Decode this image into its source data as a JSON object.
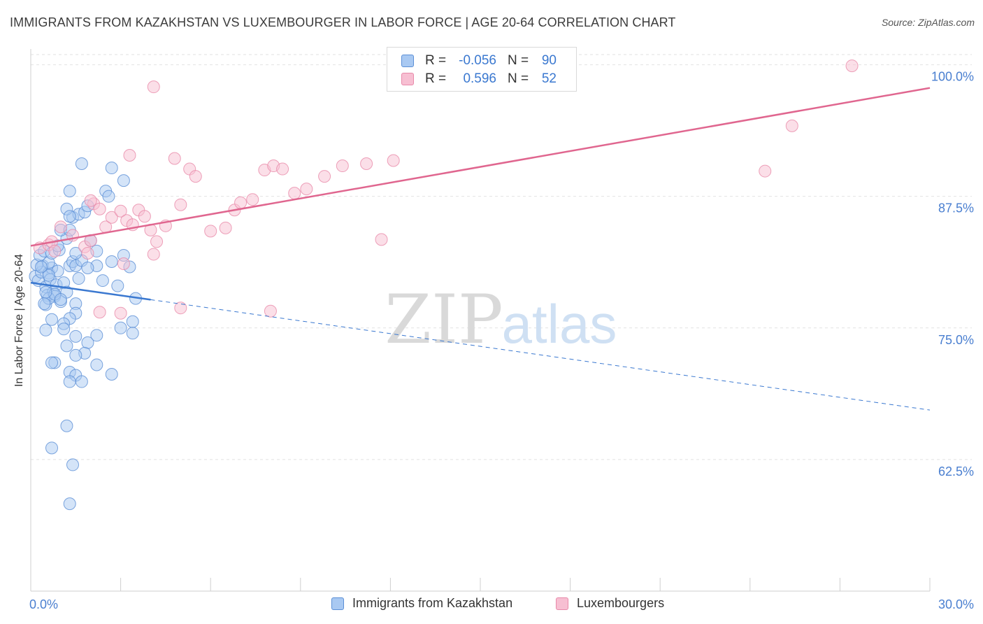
{
  "title": "IMMIGRANTS FROM KAZAKHSTAN VS LUXEMBOURGER IN LABOR FORCE | AGE 20-64 CORRELATION CHART",
  "source": "Source: ZipAtlas.com",
  "watermark": {
    "zip": "ZIP",
    "atlas": "atlas"
  },
  "legend": {
    "rows": [
      {
        "r_label": "R =",
        "r_value": "-0.056",
        "n_label": "N =",
        "n_value": "90"
      },
      {
        "r_label": "R =",
        "r_value": "0.596",
        "n_label": "N =",
        "n_value": "52"
      }
    ]
  },
  "bottom_legend": [
    "Immigrants from Kazakhstan",
    "Luxembourgers"
  ],
  "colors": {
    "blue_fill": "#a9c9f2",
    "blue_stroke": "#5b8fd6",
    "blue_line": "#3a78d0",
    "pink_fill": "#f7bfd2",
    "pink_stroke": "#e889a9",
    "pink_line": "#e0668f",
    "axis_text": "#4a7fd0",
    "grid": "#e2e2e2"
  },
  "chart_data": {
    "type": "scatter",
    "title": "IMMIGRANTS FROM KAZAKHSTAN VS LUXEMBOURGER IN LABOR FORCE | AGE 20-64 CORRELATION CHART",
    "xlabel": "",
    "ylabel": "In Labor Force | Age 20-64",
    "xlim": [
      0,
      30
    ],
    "ylim": [
      50,
      101.5
    ],
    "x_tick_labels": [
      "0.0%",
      "30.0%"
    ],
    "y_ticks": [
      62.5,
      75.0,
      87.5,
      100.0
    ],
    "y_tick_labels": [
      "62.5%",
      "75.0%",
      "87.5%",
      "100.0%"
    ],
    "series": [
      {
        "name": "Immigrants from Kazakhstan",
        "trend": {
          "x0": 0,
          "y0": 79.3,
          "x1": 30,
          "y1": 67.2,
          "solid_until": 4
        },
        "points": [
          [
            0.15,
            79.9
          ],
          [
            0.25,
            79.5
          ],
          [
            0.35,
            80.3
          ],
          [
            0.4,
            80.9
          ],
          [
            0.5,
            78.9
          ],
          [
            0.55,
            78.1
          ],
          [
            0.6,
            80.2
          ],
          [
            0.65,
            79.6
          ],
          [
            0.7,
            80.7
          ],
          [
            0.75,
            78.4
          ],
          [
            0.8,
            78.0
          ],
          [
            0.85,
            79.1
          ],
          [
            0.9,
            80.4
          ],
          [
            1.0,
            77.5
          ],
          [
            1.1,
            79.3
          ],
          [
            1.2,
            78.4
          ],
          [
            1.3,
            80.9
          ],
          [
            1.4,
            81.3
          ],
          [
            1.5,
            80.9
          ],
          [
            1.7,
            81.4
          ],
          [
            0.2,
            81.0
          ],
          [
            0.3,
            81.9
          ],
          [
            0.45,
            82.3
          ],
          [
            0.6,
            81.2
          ],
          [
            0.7,
            82.1
          ],
          [
            0.95,
            82.4
          ],
          [
            1.2,
            83.5
          ],
          [
            1.0,
            84.3
          ],
          [
            1.4,
            85.5
          ],
          [
            1.6,
            85.8
          ],
          [
            1.8,
            86.0
          ],
          [
            1.2,
            86.3
          ],
          [
            1.3,
            88.0
          ],
          [
            1.9,
            86.6
          ],
          [
            2.5,
            88.0
          ],
          [
            1.3,
            85.6
          ],
          [
            2.0,
            83.3
          ],
          [
            2.2,
            82.3
          ],
          [
            2.7,
            81.3
          ],
          [
            3.1,
            81.9
          ],
          [
            3.3,
            80.8
          ],
          [
            2.2,
            80.9
          ],
          [
            1.6,
            79.7
          ],
          [
            0.5,
            77.2
          ],
          [
            0.6,
            77.8
          ],
          [
            0.8,
            78.2
          ],
          [
            1.0,
            77.7
          ],
          [
            1.5,
            77.3
          ],
          [
            1.5,
            76.4
          ],
          [
            1.3,
            75.9
          ],
          [
            0.7,
            75.8
          ],
          [
            1.1,
            75.4
          ],
          [
            1.1,
            74.9
          ],
          [
            3.0,
            75.0
          ],
          [
            2.2,
            74.3
          ],
          [
            1.5,
            74.2
          ],
          [
            0.5,
            74.8
          ],
          [
            3.4,
            75.6
          ],
          [
            1.9,
            73.6
          ],
          [
            1.2,
            73.3
          ],
          [
            1.8,
            72.6
          ],
          [
            1.5,
            72.4
          ],
          [
            0.8,
            71.7
          ],
          [
            1.3,
            70.8
          ],
          [
            1.5,
            70.5
          ],
          [
            0.7,
            71.7
          ],
          [
            2.2,
            71.5
          ],
          [
            1.3,
            69.9
          ],
          [
            1.7,
            69.9
          ],
          [
            2.7,
            70.6
          ],
          [
            3.4,
            74.5
          ],
          [
            2.4,
            79.5
          ],
          [
            2.9,
            79.0
          ],
          [
            3.5,
            77.8
          ],
          [
            1.9,
            80.7
          ],
          [
            0.9,
            82.8
          ],
          [
            1.5,
            82.1
          ],
          [
            0.6,
            80.0
          ],
          [
            0.5,
            78.4
          ],
          [
            0.45,
            77.3
          ],
          [
            0.35,
            80.8
          ],
          [
            3.1,
            89.0
          ],
          [
            2.6,
            87.5
          ],
          [
            1.3,
            84.3
          ],
          [
            1.2,
            65.7
          ],
          [
            0.7,
            63.6
          ],
          [
            1.4,
            62.0
          ],
          [
            1.3,
            58.3
          ],
          [
            2.7,
            90.2
          ],
          [
            1.7,
            90.6
          ]
        ]
      },
      {
        "name": "Luxembourgers",
        "trend": {
          "x0": 0,
          "y0": 82.8,
          "x1": 30,
          "y1": 97.8
        },
        "points": [
          [
            0.3,
            82.6
          ],
          [
            0.6,
            82.9
          ],
          [
            0.7,
            83.2
          ],
          [
            0.8,
            82.3
          ],
          [
            1.0,
            84.6
          ],
          [
            1.4,
            83.8
          ],
          [
            1.8,
            82.7
          ],
          [
            1.9,
            82.1
          ],
          [
            2.0,
            83.3
          ],
          [
            2.1,
            86.8
          ],
          [
            2.3,
            86.3
          ],
          [
            2.5,
            84.6
          ],
          [
            2.7,
            85.5
          ],
          [
            3.0,
            86.1
          ],
          [
            3.2,
            85.2
          ],
          [
            3.4,
            84.8
          ],
          [
            3.6,
            86.2
          ],
          [
            3.8,
            85.6
          ],
          [
            4.0,
            84.3
          ],
          [
            4.2,
            83.2
          ],
          [
            4.5,
            84.7
          ],
          [
            5.0,
            86.7
          ],
          [
            5.3,
            90.1
          ],
          [
            5.5,
            89.4
          ],
          [
            6.0,
            84.2
          ],
          [
            6.5,
            84.5
          ],
          [
            6.8,
            86.2
          ],
          [
            7.0,
            86.9
          ],
          [
            7.4,
            87.2
          ],
          [
            7.8,
            90.0
          ],
          [
            8.1,
            90.4
          ],
          [
            8.4,
            90.1
          ],
          [
            8.8,
            87.8
          ],
          [
            9.2,
            88.2
          ],
          [
            9.8,
            89.4
          ],
          [
            10.4,
            90.4
          ],
          [
            11.2,
            90.6
          ],
          [
            12.1,
            90.9
          ],
          [
            4.1,
            97.9
          ],
          [
            3.1,
            81.1
          ],
          [
            4.1,
            82.0
          ],
          [
            3.0,
            76.4
          ],
          [
            5.0,
            76.9
          ],
          [
            8.0,
            76.6
          ],
          [
            2.3,
            76.5
          ],
          [
            24.5,
            89.9
          ],
          [
            25.4,
            94.2
          ],
          [
            27.4,
            99.9
          ],
          [
            11.7,
            83.4
          ],
          [
            4.8,
            91.1
          ],
          [
            3.3,
            91.4
          ],
          [
            2.0,
            87.1
          ]
        ]
      }
    ]
  }
}
